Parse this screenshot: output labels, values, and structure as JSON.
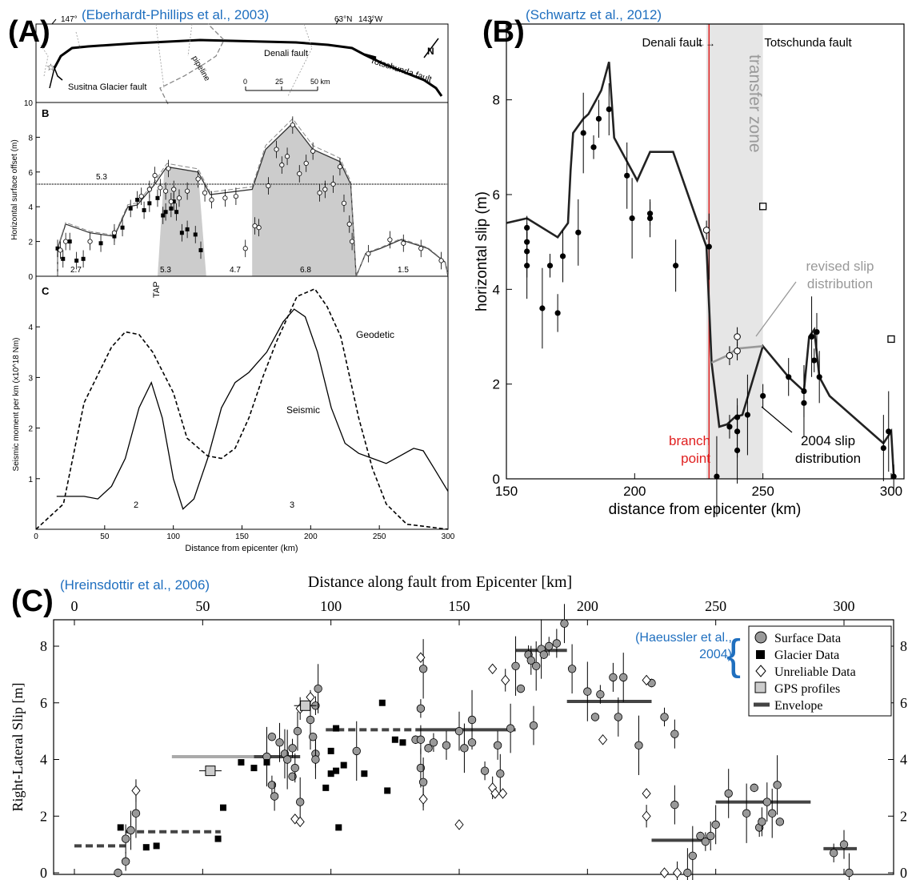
{
  "panelA": {
    "label": "(A)",
    "citation": "(Eberhardt-Phillips et al., 2003)",
    "map": {
      "labels": [
        "147°",
        "63°N",
        "143°W",
        "Denali fault",
        "Totschunda fault",
        "pipeline",
        "Susitna Glacier fault",
        "N",
        "0",
        "25",
        "50 km"
      ]
    },
    "subB": {
      "label": "B",
      "ylabel": "Horizontal surface offset (m)",
      "yticks": [
        "0",
        "2",
        "4",
        "6",
        "8",
        "10"
      ],
      "ref_label": "5.3",
      "seg_labels": [
        "2.7",
        "5.3",
        "4.7",
        "6.8",
        "1.5"
      ],
      "tap": "TAP",
      "envelope": [
        [
          16,
          0
        ],
        [
          16,
          1.6
        ],
        [
          22,
          3
        ],
        [
          40,
          2.5
        ],
        [
          58,
          2.3
        ],
        [
          68,
          4.0
        ],
        [
          75,
          4.1
        ],
        [
          88,
          5.3
        ],
        [
          95,
          6.1
        ],
        [
          97,
          6.3
        ],
        [
          120,
          6.0
        ],
        [
          129,
          4.7
        ],
        [
          160,
          5.0
        ],
        [
          170,
          7.3
        ],
        [
          190,
          8.8
        ],
        [
          205,
          7.3
        ],
        [
          225,
          6.6
        ],
        [
          233,
          5.3
        ],
        [
          237,
          0
        ],
        [
          244,
          1.3
        ],
        [
          255,
          1.6
        ],
        [
          270,
          2.1
        ],
        [
          290,
          1.6
        ],
        [
          303,
          0.8
        ],
        [
          305,
          0
        ]
      ],
      "filled": [
        [
          16,
          1.6
        ],
        [
          20,
          1.0
        ],
        [
          25,
          2.0
        ],
        [
          30,
          0.9
        ],
        [
          35,
          1.0
        ],
        [
          48,
          1.9
        ],
        [
          58,
          2.3
        ],
        [
          64,
          2.8
        ],
        [
          70,
          3.9
        ],
        [
          75,
          4.4
        ],
        [
          80,
          3.8
        ],
        [
          84,
          4.2
        ],
        [
          90,
          4.5
        ],
        [
          94,
          3.5
        ],
        [
          96,
          3.7
        ],
        [
          100,
          3.9
        ],
        [
          102,
          4.3
        ],
        [
          104,
          3.7
        ],
        [
          108,
          2.5
        ],
        [
          112,
          2.7
        ],
        [
          118,
          2.4
        ],
        [
          122,
          1.5
        ]
      ],
      "open": [
        [
          18,
          1.5
        ],
        [
          22,
          2.0
        ],
        [
          40,
          2.0
        ],
        [
          58,
          2.5
        ],
        [
          78,
          4.6
        ],
        [
          84,
          5.0
        ],
        [
          88,
          5.8
        ],
        [
          92,
          5.1
        ],
        [
          96,
          4.9
        ],
        [
          98,
          6.2
        ],
        [
          100,
          4.3
        ],
        [
          102,
          5.0
        ],
        [
          106,
          4.5
        ],
        [
          112,
          4.9
        ],
        [
          120,
          5.6
        ],
        [
          125,
          4.8
        ],
        [
          130,
          4.4
        ],
        [
          140,
          4.5
        ],
        [
          148,
          4.6
        ],
        [
          155,
          1.6
        ],
        [
          162,
          2.9
        ],
        [
          165,
          2.8
        ],
        [
          172,
          5.2
        ],
        [
          178,
          7.3
        ],
        [
          182,
          6.4
        ],
        [
          186,
          6.9
        ],
        [
          190,
          8.7
        ],
        [
          195,
          5.9
        ],
        [
          200,
          6.5
        ],
        [
          205,
          7.2
        ],
        [
          210,
          4.8
        ],
        [
          214,
          5.0
        ],
        [
          220,
          5.3
        ],
        [
          225,
          6.3
        ],
        [
          228,
          4.2
        ],
        [
          232,
          3.0
        ],
        [
          234,
          2.0
        ],
        [
          246,
          1.3
        ],
        [
          262,
          2.1
        ],
        [
          272,
          1.9
        ],
        [
          285,
          1.6
        ],
        [
          300,
          0.9
        ]
      ]
    },
    "subC": {
      "label": "C",
      "ylabel": "Seismic moment per km (x10^18 Nm)",
      "yticks": [
        "1",
        "2",
        "3",
        "4"
      ],
      "xticks": [
        "0",
        "50",
        "100",
        "150",
        "200",
        "250",
        "300"
      ],
      "xlabel": "Distance from epicenter (km)",
      "line_labels": [
        "Geodetic",
        "Seismic"
      ],
      "peak_labels": [
        "2",
        "3"
      ],
      "geodetic": [
        [
          0,
          0
        ],
        [
          20,
          0.5
        ],
        [
          35,
          2.5
        ],
        [
          55,
          3.6
        ],
        [
          65,
          3.9
        ],
        [
          75,
          3.85
        ],
        [
          85,
          3.5
        ],
        [
          100,
          2.7
        ],
        [
          110,
          1.8
        ],
        [
          125,
          1.45
        ],
        [
          135,
          1.4
        ],
        [
          145,
          1.6
        ],
        [
          155,
          2.2
        ],
        [
          165,
          3.0
        ],
        [
          175,
          3.7
        ],
        [
          190,
          4.6
        ],
        [
          203,
          4.75
        ],
        [
          212,
          4.4
        ],
        [
          222,
          3.8
        ],
        [
          235,
          2.2
        ],
        [
          245,
          1.2
        ],
        [
          255,
          0.5
        ],
        [
          270,
          0.1
        ],
        [
          300,
          0
        ]
      ],
      "seismic": [
        [
          15,
          0.65
        ],
        [
          35,
          0.65
        ],
        [
          45,
          0.6
        ],
        [
          55,
          0.85
        ],
        [
          65,
          1.4
        ],
        [
          75,
          2.4
        ],
        [
          84,
          2.9
        ],
        [
          92,
          2.2
        ],
        [
          100,
          1.0
        ],
        [
          107,
          0.4
        ],
        [
          115,
          0.6
        ],
        [
          125,
          1.4
        ],
        [
          135,
          2.4
        ],
        [
          145,
          2.9
        ],
        [
          155,
          3.1
        ],
        [
          168,
          3.5
        ],
        [
          180,
          4.1
        ],
        [
          188,
          4.35
        ],
        [
          196,
          4.2
        ],
        [
          205,
          3.5
        ],
        [
          215,
          2.4
        ],
        [
          225,
          1.7
        ],
        [
          235,
          1.5
        ],
        [
          245,
          1.4
        ],
        [
          255,
          1.3
        ],
        [
          265,
          1.45
        ],
        [
          275,
          1.6
        ],
        [
          282,
          1.55
        ],
        [
          290,
          1.2
        ],
        [
          300,
          0.75
        ]
      ]
    }
  },
  "panelB": {
    "label": "(B)",
    "citation": "(Schwartz et al., 2012)",
    "xlabel": "distance from epicenter (km)",
    "ylabel": "horizontal slip (m)",
    "xticks": [
      "150",
      "200",
      "250",
      "300"
    ],
    "yticks": [
      "0",
      "2",
      "4",
      "6",
      "8"
    ],
    "denali": "Denali fault",
    "totschunda": "Totschunda fault",
    "transfer": "transfer zone",
    "branch": "branch point",
    "revised": "revised slip distribution",
    "dist2004": "2004 slip distribution",
    "colors": {
      "branch": "#e02020",
      "zone": "#e6e6e6",
      "revised": "#999999",
      "cite": "#1f6fbf"
    },
    "line2004": [
      [
        150,
        5.4
      ],
      [
        158,
        5.5
      ],
      [
        170,
        5.1
      ],
      [
        174,
        5.4
      ],
      [
        175,
        6.5
      ],
      [
        176,
        7.3
      ],
      [
        180,
        7.6
      ],
      [
        182,
        7.7
      ],
      [
        185,
        8.0
      ],
      [
        187,
        8.2
      ],
      [
        190,
        8.8
      ],
      [
        192,
        7.2
      ],
      [
        198,
        6.6
      ],
      [
        201,
        6.3
      ],
      [
        206,
        6.9
      ],
      [
        211,
        6.9
      ],
      [
        215,
        6.9
      ],
      [
        224,
        5.5
      ],
      [
        228,
        4.9
      ],
      [
        230,
        2.45
      ],
      [
        233,
        1.1
      ],
      [
        236,
        1.15
      ],
      [
        239,
        1.3
      ],
      [
        242,
        1.35
      ],
      [
        250,
        2.8
      ],
      [
        260,
        2.15
      ],
      [
        266,
        1.85
      ],
      [
        268,
        3.0
      ],
      [
        270,
        3.15
      ],
      [
        272,
        2.15
      ],
      [
        276,
        1.75
      ],
      [
        297,
        0.75
      ],
      [
        300,
        1.0
      ],
      [
        301,
        0.05
      ]
    ],
    "revised_line": [
      [
        230,
        2.45
      ],
      [
        236,
        2.6
      ],
      [
        240,
        2.75
      ],
      [
        250,
        2.8
      ]
    ],
    "filled_pts": [
      [
        158,
        5.3
      ],
      [
        158,
        5.0
      ],
      [
        158,
        4.8
      ],
      [
        158,
        4.5
      ],
      [
        164,
        3.6
      ],
      [
        167,
        4.5
      ],
      [
        170,
        3.5
      ],
      [
        172,
        4.7
      ],
      [
        178,
        5.2
      ],
      [
        180,
        7.3
      ],
      [
        184,
        7.0
      ],
      [
        186,
        7.6
      ],
      [
        190,
        7.8
      ],
      [
        197,
        6.4
      ],
      [
        199,
        5.5
      ],
      [
        206,
        5.6
      ],
      [
        206,
        5.5
      ],
      [
        216,
        4.5
      ],
      [
        229,
        4.9
      ],
      [
        232,
        0.05
      ],
      [
        237,
        1.1
      ],
      [
        240,
        1.3
      ],
      [
        240,
        1.0
      ],
      [
        240,
        0.6
      ],
      [
        244,
        1.35
      ],
      [
        250,
        1.75
      ],
      [
        260,
        2.15
      ],
      [
        266,
        1.85
      ],
      [
        266,
        1.6
      ],
      [
        269,
        3.0
      ],
      [
        270,
        2.5
      ],
      [
        271,
        3.1
      ],
      [
        272,
        2.15
      ],
      [
        297,
        0.65
      ],
      [
        299,
        1.0
      ],
      [
        301,
        0.05
      ]
    ],
    "open_pts": [
      [
        228,
        5.25
      ],
      [
        237,
        2.6
      ],
      [
        240,
        3.0
      ],
      [
        240,
        2.7
      ]
    ],
    "squares": [
      [
        250,
        5.75
      ],
      [
        300,
        2.95
      ]
    ]
  },
  "panelC": {
    "label": "(C)",
    "citation": "(Hreinsdottir et al., 2006)",
    "xlabel": "Distance along fault from Epicenter [km]",
    "ylabel": "Right-Lateral Slip [m]",
    "xticks": [
      "0",
      "50",
      "100",
      "150",
      "200",
      "250",
      "300"
    ],
    "yticks": [
      "0",
      "2",
      "4",
      "6",
      "8"
    ],
    "haeussler": "(Haeussler et al., 2004)",
    "legend": [
      "Surface Data",
      "Glacier Data",
      "Unreliable Data",
      "GPS profiles",
      "Envelope"
    ],
    "colors": {
      "surface": "#999999",
      "envelope": "#444444",
      "light": "#aaaaaa",
      "cite": "#1f6fbf"
    },
    "surface": [
      [
        17,
        0
      ],
      [
        20,
        0.4
      ],
      [
        20,
        1.2
      ],
      [
        22,
        1.5
      ],
      [
        24,
        2.1
      ],
      [
        75,
        4.1
      ],
      [
        77,
        4.8
      ],
      [
        77,
        3.1
      ],
      [
        78,
        2.7
      ],
      [
        80,
        4.6
      ],
      [
        82,
        4.2
      ],
      [
        83,
        4.0
      ],
      [
        85,
        3.4
      ],
      [
        85,
        4.4
      ],
      [
        86,
        3.7
      ],
      [
        87,
        5.0
      ],
      [
        88,
        2.5
      ],
      [
        92,
        5.4
      ],
      [
        93,
        4.8
      ],
      [
        94,
        5.9
      ],
      [
        94,
        4.2
      ],
      [
        94,
        4.0
      ],
      [
        95,
        6.5
      ],
      [
        110,
        4.3
      ],
      [
        133,
        4.7
      ],
      [
        135,
        5.8
      ],
      [
        135,
        4.7
      ],
      [
        135,
        3.7
      ],
      [
        136,
        3.2
      ],
      [
        136,
        7.2
      ],
      [
        138,
        4.4
      ],
      [
        140,
        4.6
      ],
      [
        145,
        4.5
      ],
      [
        150,
        5.0
      ],
      [
        152,
        4.4
      ],
      [
        155,
        5.4
      ],
      [
        155,
        4.6
      ],
      [
        160,
        3.6
      ],
      [
        165,
        4.5
      ],
      [
        166,
        3.5
      ],
      [
        170,
        5.1
      ],
      [
        172,
        7.3
      ],
      [
        174,
        6.5
      ],
      [
        177,
        7.7
      ],
      [
        178,
        7.5
      ],
      [
        179,
        5.2
      ],
      [
        180,
        7.3
      ],
      [
        182,
        7.9
      ],
      [
        183,
        7.7
      ],
      [
        185,
        8.0
      ],
      [
        188,
        8.1
      ],
      [
        191,
        8.8
      ],
      [
        194,
        7.2
      ],
      [
        200,
        6.4
      ],
      [
        203,
        5.5
      ],
      [
        205,
        6.3
      ],
      [
        210,
        6.9
      ],
      [
        212,
        5.5
      ],
      [
        214,
        6.9
      ],
      [
        220,
        4.5
      ],
      [
        225,
        6.7
      ],
      [
        230,
        5.5
      ],
      [
        234,
        4.9
      ],
      [
        234,
        2.4
      ],
      [
        239,
        0
      ],
      [
        241,
        0.6
      ],
      [
        244,
        1.3
      ],
      [
        246,
        1.1
      ],
      [
        248,
        1.3
      ],
      [
        250,
        1.7
      ],
      [
        255,
        2.8
      ],
      [
        262,
        2.1
      ],
      [
        265,
        3.0
      ],
      [
        267,
        1.6
      ],
      [
        268,
        1.8
      ],
      [
        270,
        2.5
      ],
      [
        272,
        2.1
      ],
      [
        274,
        3.1
      ],
      [
        275,
        1.8
      ],
      [
        296,
        0.7
      ],
      [
        300,
        1.0
      ],
      [
        302,
        0
      ]
    ],
    "glacier": [
      [
        18,
        1.6
      ],
      [
        28,
        0.9
      ],
      [
        32,
        0.95
      ],
      [
        56,
        1.2
      ],
      [
        58,
        2.3
      ],
      [
        65,
        3.9
      ],
      [
        70,
        3.7
      ],
      [
        75,
        3.9
      ],
      [
        98,
        3.0
      ],
      [
        100,
        3.5
      ],
      [
        100,
        4.3
      ],
      [
        102,
        5.1
      ],
      [
        102,
        3.6
      ],
      [
        103,
        1.6
      ],
      [
        105,
        3.8
      ],
      [
        113,
        3.5
      ],
      [
        120,
        6.0
      ],
      [
        122,
        2.9
      ],
      [
        125,
        4.7
      ],
      [
        128,
        4.6
      ]
    ],
    "unreliable": [
      [
        24,
        2.9
      ],
      [
        86,
        1.9
      ],
      [
        88,
        1.8
      ],
      [
        88,
        5.8
      ],
      [
        92,
        6.2
      ],
      [
        135,
        7.6
      ],
      [
        136,
        2.6
      ],
      [
        150,
        1.7
      ],
      [
        163,
        7.2
      ],
      [
        163,
        3.0
      ],
      [
        164,
        2.8
      ],
      [
        167,
        2.8
      ],
      [
        168,
        6.8
      ],
      [
        206,
        4.7
      ],
      [
        223,
        2.8
      ],
      [
        223,
        2.0
      ],
      [
        223,
        6.8
      ],
      [
        230,
        0
      ],
      [
        235,
        0
      ]
    ],
    "gps": [
      [
        90,
        5.9
      ],
      [
        53,
        3.6
      ]
    ],
    "envelope": [
      {
        "x1": 0,
        "x2": 20,
        "y": 0.95,
        "style": "dashed"
      },
      {
        "x1": 20,
        "x2": 57,
        "y": 1.45,
        "style": "dashed"
      },
      {
        "x1": 38,
        "x2": 70,
        "y": 4.1,
        "style": "light"
      },
      {
        "x1": 70,
        "x2": 88,
        "y": 4.1,
        "style": "solid"
      },
      {
        "x1": 98,
        "x2": 135,
        "y": 5.05,
        "style": "dashed"
      },
      {
        "x1": 135,
        "x2": 172,
        "y": 5.05,
        "style": "solid"
      },
      {
        "x1": 172,
        "x2": 192,
        "y": 7.85,
        "style": "solid"
      },
      {
        "x1": 192,
        "x2": 225,
        "y": 6.05,
        "style": "solid"
      },
      {
        "x1": 225,
        "x2": 245,
        "y": 1.15,
        "style": "solid"
      },
      {
        "x1": 250,
        "x2": 287,
        "y": 2.5,
        "style": "solid"
      },
      {
        "x1": 292,
        "x2": 305,
        "y": 0.85,
        "style": "solid"
      }
    ]
  }
}
